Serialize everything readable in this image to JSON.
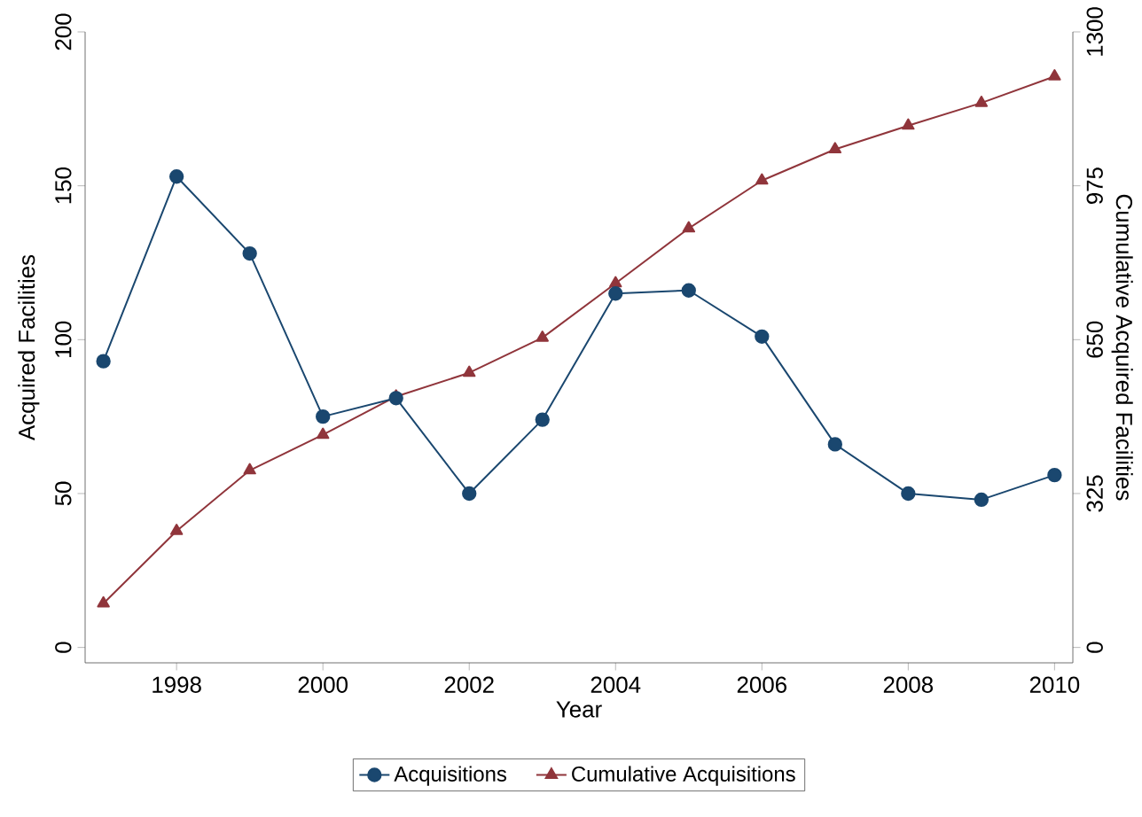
{
  "chart_data": {
    "type": "line",
    "xlabel": "Year",
    "ylabel": "Acquired Facilities",
    "y2label": "Cumulative Acquired Facilities",
    "x": [
      1997,
      1998,
      1999,
      2000,
      2001,
      2002,
      2003,
      2004,
      2005,
      2006,
      2007,
      2008,
      2009,
      2010
    ],
    "series": [
      {
        "name": "Acquisitions",
        "color": "#1a476f",
        "marker": "circle",
        "values": [
          93,
          153,
          128,
          75,
          81,
          50,
          74,
          115,
          116,
          101,
          66,
          50,
          48,
          56
        ]
      },
      {
        "name": "Cumulative Acquisitions",
        "color": "#90353b",
        "marker": "triangle",
        "axis": "y2",
        "values": [
          93,
          246,
          374,
          449,
          530,
          580,
          654,
          769,
          885,
          986,
          1052,
          1102,
          1150,
          1206
        ]
      }
    ],
    "xlim": [
      1996.75,
      2010.25
    ],
    "xticks": [
      1998,
      2000,
      2002,
      2004,
      2006,
      2008,
      2010
    ],
    "ylim": [
      -5,
      200
    ],
    "yticks": [
      0,
      50,
      100,
      150,
      200
    ],
    "y2lim": [
      -32.5,
      1300
    ],
    "y2ticks": [
      0,
      325,
      650,
      975,
      1300
    ],
    "grid": false,
    "legend": "bottom",
    "line_style": "solid"
  }
}
